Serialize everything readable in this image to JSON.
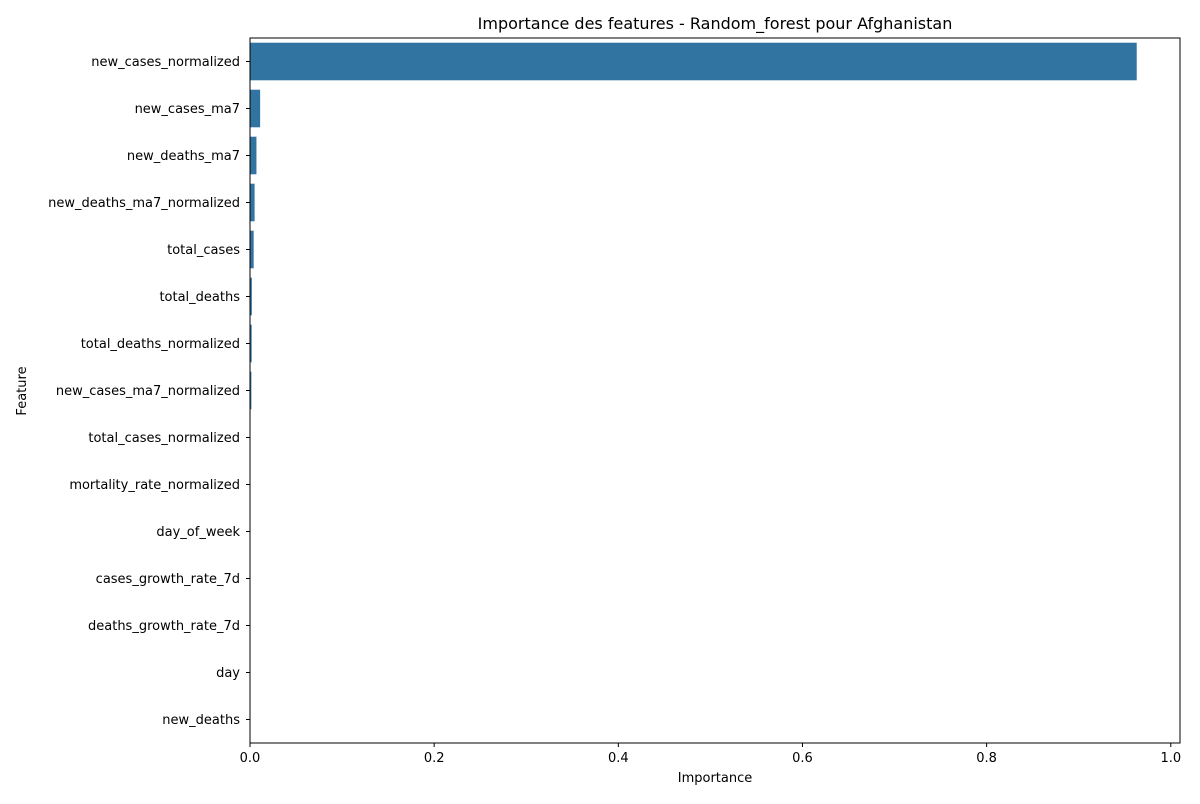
{
  "chart_data": {
    "type": "bar",
    "orientation": "horizontal",
    "title": "Importance des features - Random_forest pour Afghanistan",
    "xlabel": "Importance",
    "ylabel": "Feature",
    "xlim": [
      0,
      1.01
    ],
    "xticks": [
      0.0,
      0.2,
      0.4,
      0.6,
      0.8,
      1.0
    ],
    "xtick_labels": [
      "0.0",
      "0.2",
      "0.4",
      "0.6",
      "0.8",
      "1.0"
    ],
    "grid": false,
    "legend": "none",
    "bar_color": "#3274a1",
    "categories": [
      "new_cases_normalized",
      "new_cases_ma7",
      "new_deaths_ma7",
      "new_deaths_ma7_normalized",
      "total_cases",
      "total_deaths",
      "total_deaths_normalized",
      "new_cases_ma7_normalized",
      "total_cases_normalized",
      "mortality_rate_normalized",
      "day_of_week",
      "cases_growth_rate_7d",
      "deaths_growth_rate_7d",
      "day",
      "new_deaths"
    ],
    "values": [
      0.963,
      0.011,
      0.007,
      0.005,
      0.004,
      0.002,
      0.0018,
      0.0015,
      0.0004,
      0.0003,
      0.0002,
      0.0001,
      0.0001,
      5e-05,
      3e-05
    ]
  }
}
